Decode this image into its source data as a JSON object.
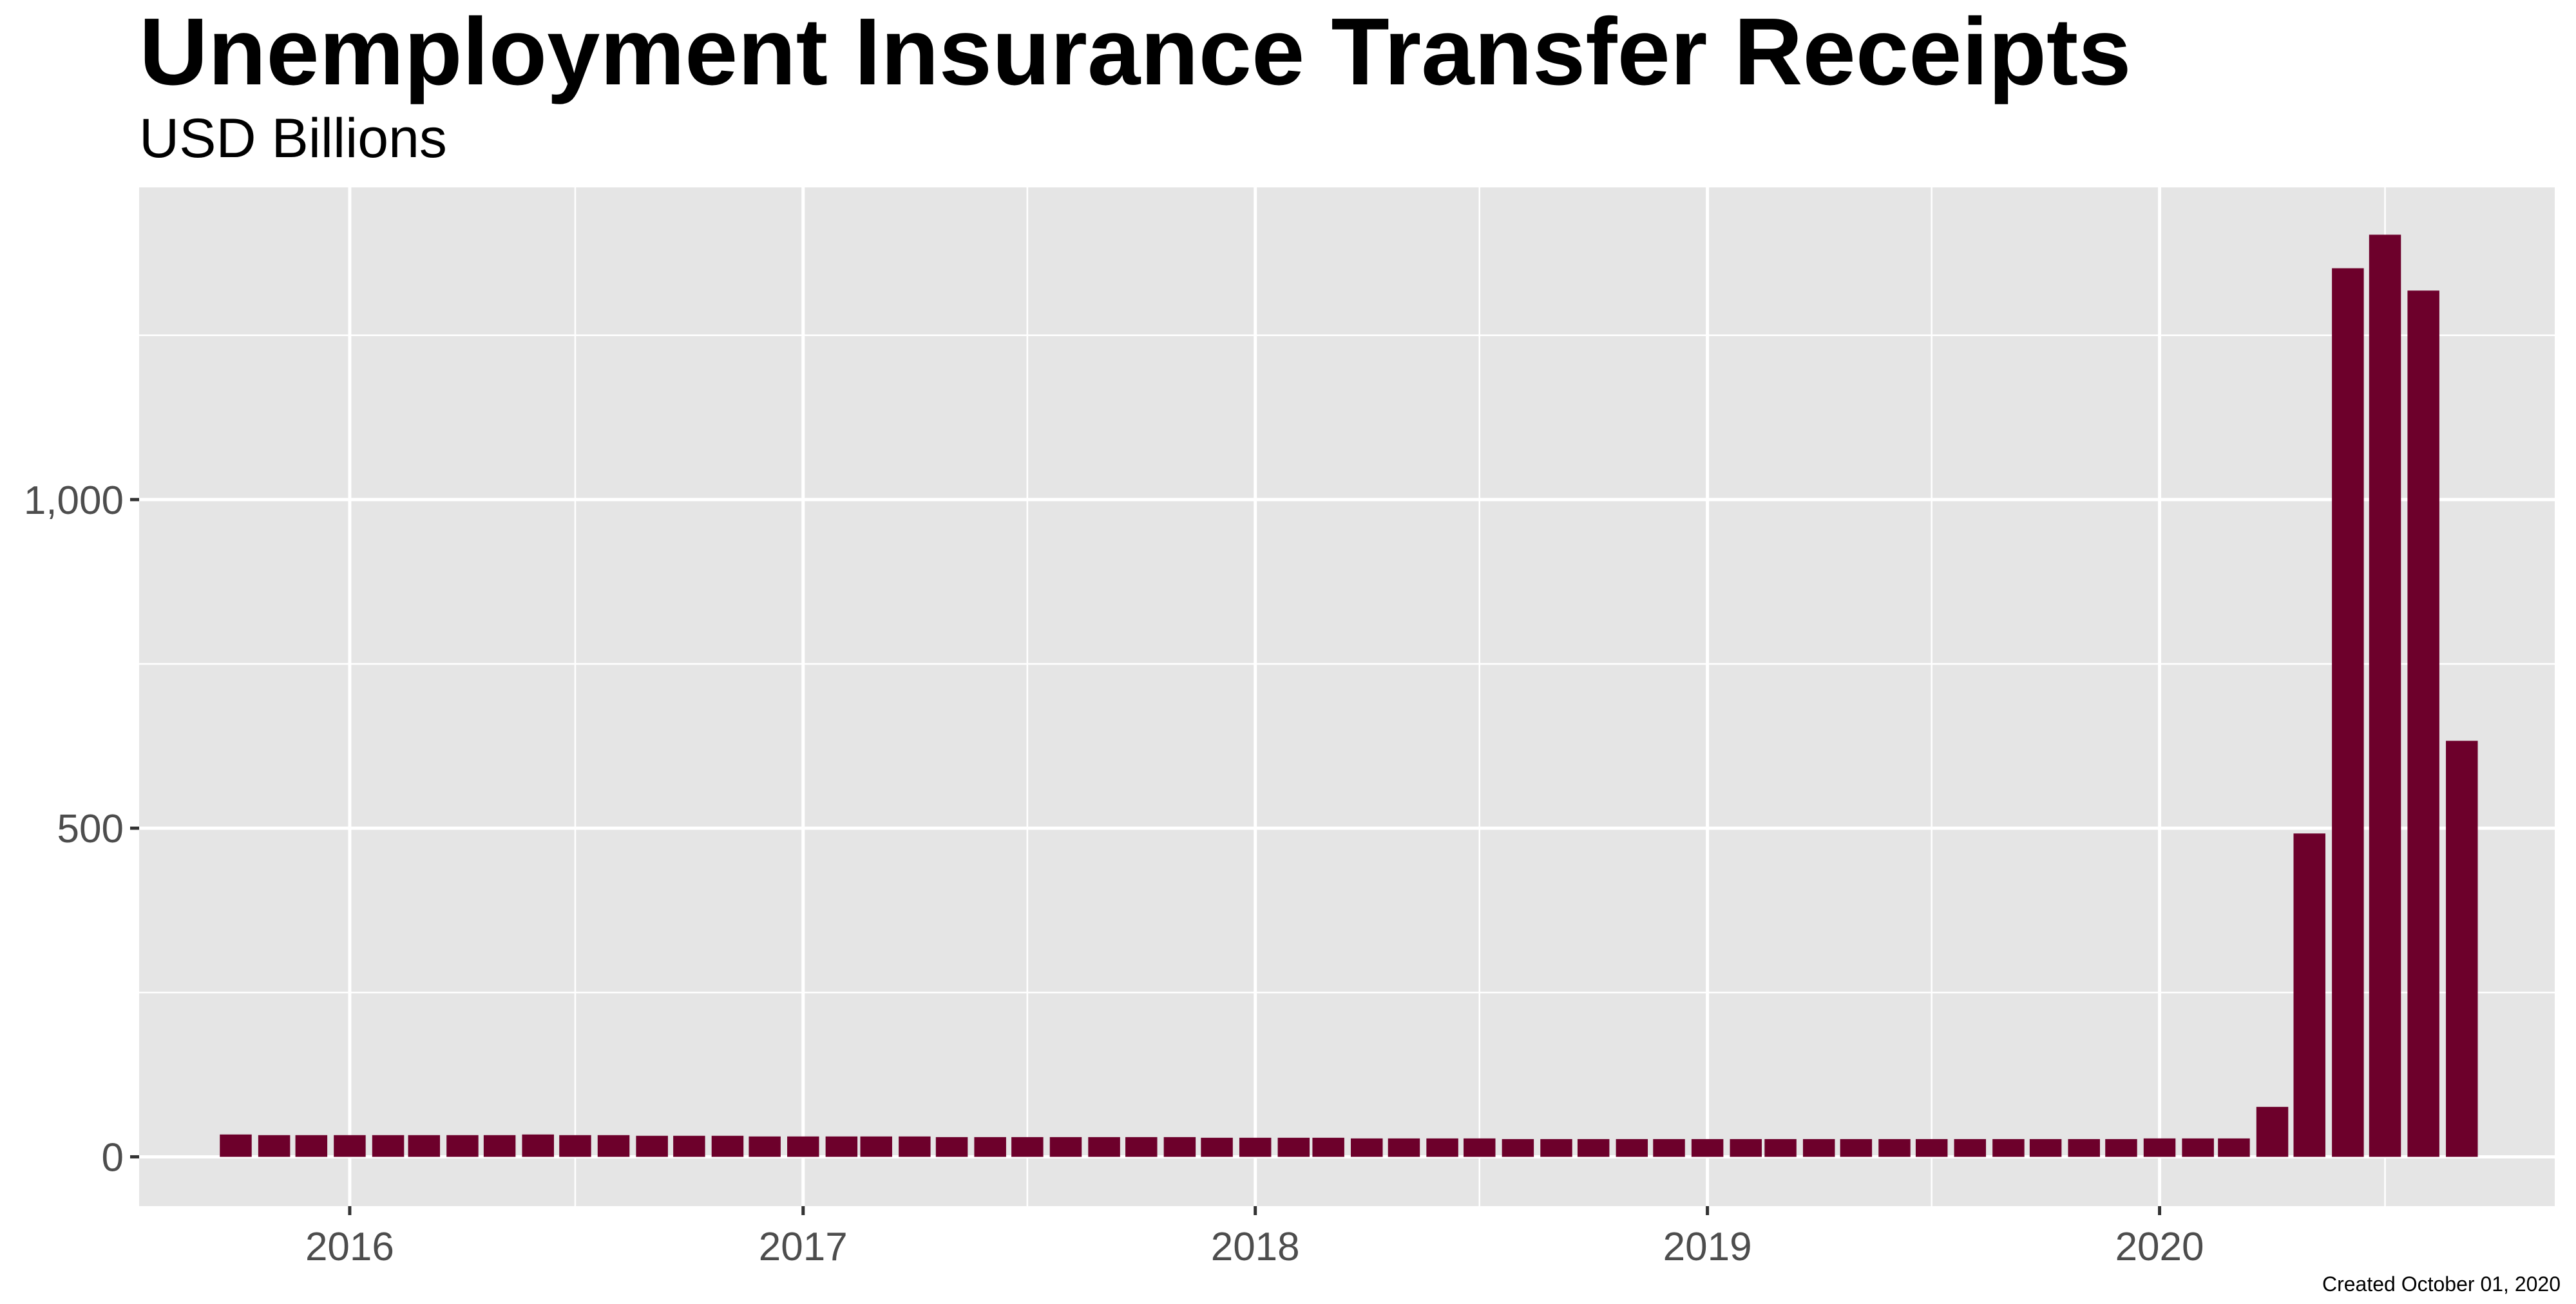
{
  "title": "Unemployment Insurance Transfer Receipts",
  "subtitle": "USD Billions",
  "caption": "Created October 01, 2020",
  "colors": {
    "bar": "#6d002b",
    "panel": "#e5e5e5",
    "grid": "#ffffff",
    "tick": "#4d4d4d"
  },
  "chart_data": {
    "type": "bar",
    "title": "Unemployment Insurance Transfer Receipts",
    "subtitle": "USD Billions",
    "xlabel": "",
    "ylabel": "",
    "grid": true,
    "legend": "none",
    "frequency": "monthly",
    "x_range": [
      "2015-07-15",
      "2020-11-15"
    ],
    "ylim": [
      -75,
      1475
    ],
    "x_ticks": [
      "2016",
      "2017",
      "2018",
      "2019",
      "2020"
    ],
    "y_ticks": [
      0,
      500,
      1000
    ],
    "y_tick_labels": [
      "0",
      "500",
      "1,000"
    ],
    "categories": [
      "2015-10",
      "2015-11",
      "2015-12",
      "2016-01",
      "2016-02",
      "2016-03",
      "2016-04",
      "2016-05",
      "2016-06",
      "2016-07",
      "2016-08",
      "2016-09",
      "2016-10",
      "2016-11",
      "2016-12",
      "2017-01",
      "2017-02",
      "2017-03",
      "2017-04",
      "2017-05",
      "2017-06",
      "2017-07",
      "2017-08",
      "2017-09",
      "2017-10",
      "2017-11",
      "2017-12",
      "2018-01",
      "2018-02",
      "2018-03",
      "2018-04",
      "2018-05",
      "2018-06",
      "2018-07",
      "2018-08",
      "2018-09",
      "2018-10",
      "2018-11",
      "2018-12",
      "2019-01",
      "2019-02",
      "2019-03",
      "2019-04",
      "2019-05",
      "2019-06",
      "2019-07",
      "2019-08",
      "2019-09",
      "2019-10",
      "2019-11",
      "2019-12",
      "2020-01",
      "2020-02",
      "2020-03",
      "2020-04",
      "2020-05",
      "2020-06",
      "2020-07",
      "2020-08",
      "2020-09"
    ],
    "values": [
      34,
      33,
      33,
      33,
      33,
      33,
      33,
      33,
      34,
      33,
      33,
      32,
      32,
      32,
      31,
      31,
      31,
      31,
      31,
      30,
      30,
      30,
      30,
      30,
      30,
      30,
      29,
      29,
      29,
      29,
      28,
      28,
      28,
      28,
      27,
      27,
      27,
      27,
      27,
      27,
      27,
      27,
      27,
      27,
      27,
      27,
      27,
      27,
      27,
      27,
      27,
      28,
      28,
      28,
      76,
      492,
      1352,
      1403,
      1318,
      633
    ]
  }
}
